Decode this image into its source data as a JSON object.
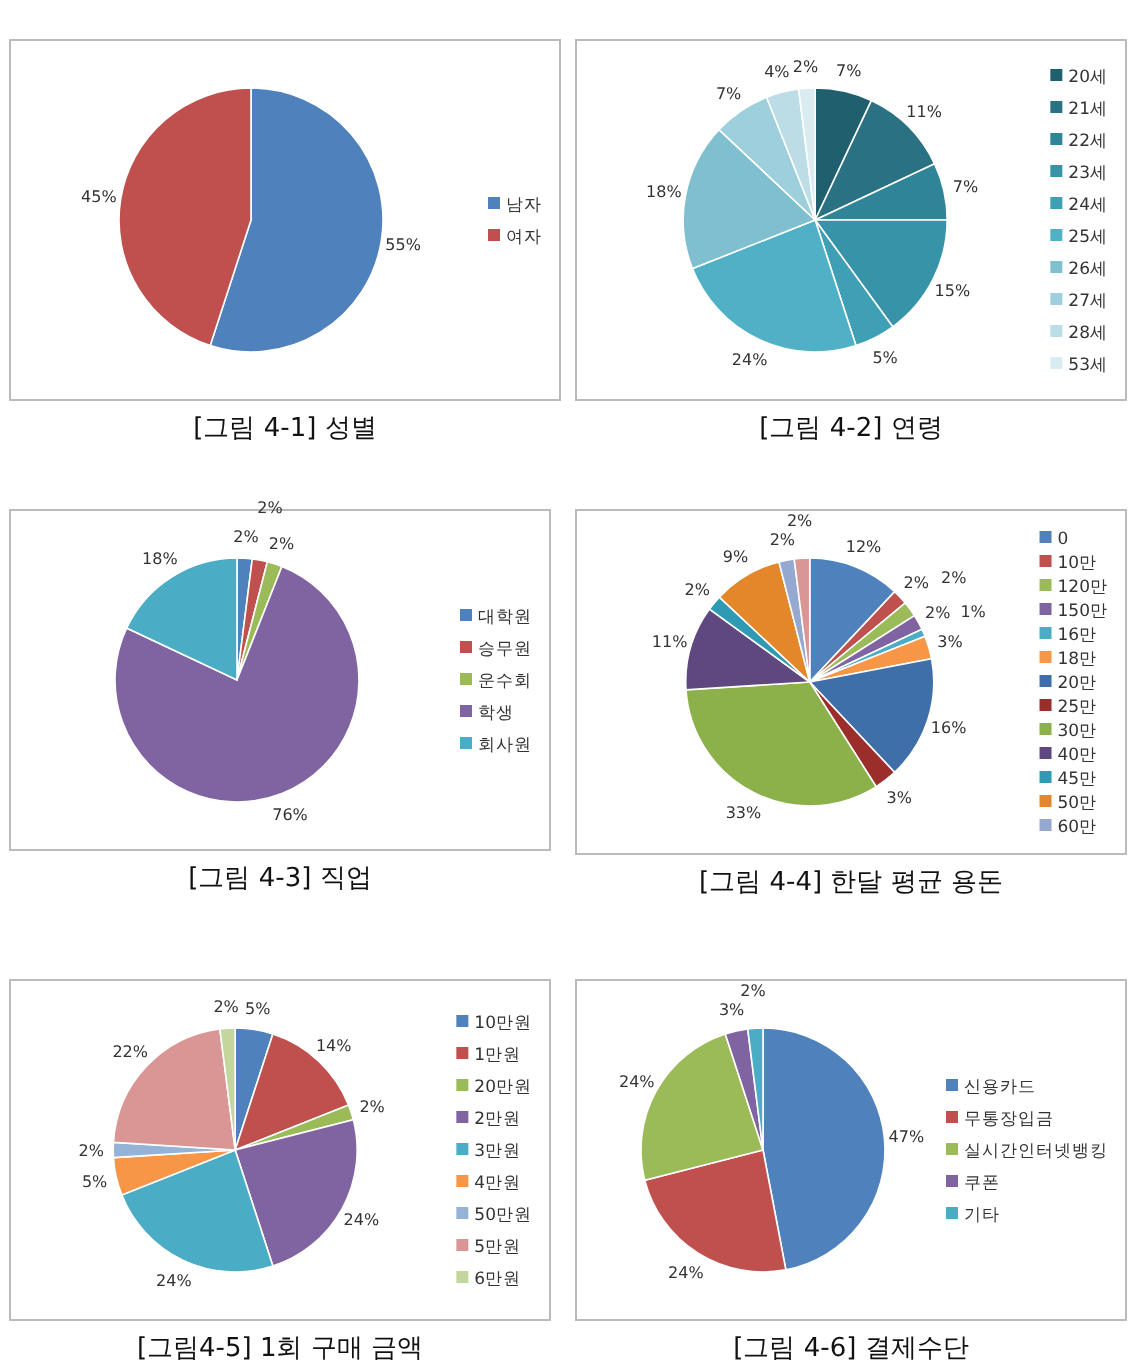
{
  "chart_data": [
    {
      "type": "pie",
      "title": "[그림 4-1] 성별",
      "categories": [
        "남자",
        "여자"
      ],
      "values": [
        55,
        45
      ],
      "value_labels": [
        "55%",
        "45%"
      ],
      "colors": [
        "#4f81bd",
        "#c0504d"
      ],
      "legend": "right"
    },
    {
      "type": "pie",
      "title": "[그림 4-2] 연령",
      "categories": [
        "20세",
        "21세",
        "22세",
        "23세",
        "24세",
        "25세",
        "26세",
        "27세",
        "28세",
        "53세"
      ],
      "values": [
        7,
        11,
        7,
        15,
        5,
        24,
        18,
        7,
        4,
        2
      ],
      "value_labels": [
        "7%",
        "11%",
        "7%",
        "15%",
        "5%",
        "24%",
        "18%",
        "7%",
        "4%",
        "2%"
      ],
      "colors": [
        "#1f5f6e",
        "#2a7283",
        "#2f8497",
        "#3794a8",
        "#3fa0b5",
        "#4fb0c6",
        "#7fbfd0",
        "#9ecfdc",
        "#bcdde6",
        "#d8ecf1"
      ],
      "legend": "right"
    },
    {
      "type": "pie",
      "title": "[그림 4-3] 직업",
      "categories": [
        "대학원",
        "승무원",
        "운수회",
        "학생",
        "회사원"
      ],
      "values": [
        2,
        2,
        2,
        76,
        18
      ],
      "value_labels": [
        "2%",
        "2%",
        "2%",
        "76%",
        "18%"
      ],
      "colors": [
        "#4f81bd",
        "#c0504d",
        "#9bbb59",
        "#8064a2",
        "#4bacc6"
      ],
      "legend": "right"
    },
    {
      "type": "pie",
      "title": "[그림 4-4] 한달 평균 용돈",
      "categories": [
        "0",
        "10만",
        "120만",
        "150만",
        "16만",
        "18만",
        "20만",
        "25만",
        "30만",
        "40만",
        "45만",
        "50만",
        "60만",
        null
      ],
      "values": [
        12,
        2,
        2,
        2,
        1,
        3,
        16,
        3,
        33,
        11,
        2,
        9,
        2,
        2
      ],
      "value_labels": [
        "12%",
        "2%",
        "2%",
        "2%",
        "1%",
        "3%",
        "16%",
        "3%",
        "33%",
        "11%",
        "2%",
        "9%",
        "2%",
        "2%"
      ],
      "colors": [
        "#4f81bd",
        "#c0504d",
        "#9bbb59",
        "#8064a2",
        "#4bacc6",
        "#f79646",
        "#3f6fa8",
        "#9b2d2a",
        "#8cb04a",
        "#5f4880",
        "#2f9ab3",
        "#e4872a",
        "#95a9d0",
        "#d99694"
      ],
      "legend": "right"
    },
    {
      "type": "pie",
      "title": "[그림4-5] 1회 구매 금액",
      "categories": [
        "10만원",
        "1만원",
        "20만원",
        "2만원",
        "3만원",
        "4만원",
        "50만원",
        "5만원",
        "6만원"
      ],
      "values": [
        5,
        14,
        2,
        24,
        24,
        5,
        2,
        22,
        2
      ],
      "value_labels": [
        "5%",
        "14%",
        "2%",
        "24%",
        "24%",
        "5%",
        "2%",
        "22%",
        "2%"
      ],
      "colors": [
        "#4f81bd",
        "#c0504d",
        "#9bbb59",
        "#8064a2",
        "#4bacc6",
        "#f79646",
        "#95b3d7",
        "#d99694",
        "#c3d69b"
      ],
      "legend": "right"
    },
    {
      "type": "pie",
      "title": "[그림 4-6] 결제수단",
      "categories": [
        "신용카드",
        "무통장입금",
        "실시간인터넷뱅킹",
        "쿠폰",
        "기타"
      ],
      "values": [
        47,
        24,
        24,
        3,
        2
      ],
      "value_labels": [
        "47%",
        "24%",
        "24%",
        "3%",
        "2%"
      ],
      "colors": [
        "#4f81bd",
        "#c0504d",
        "#9bbb59",
        "#8064a2",
        "#4bacc6"
      ],
      "legend": "right"
    }
  ]
}
